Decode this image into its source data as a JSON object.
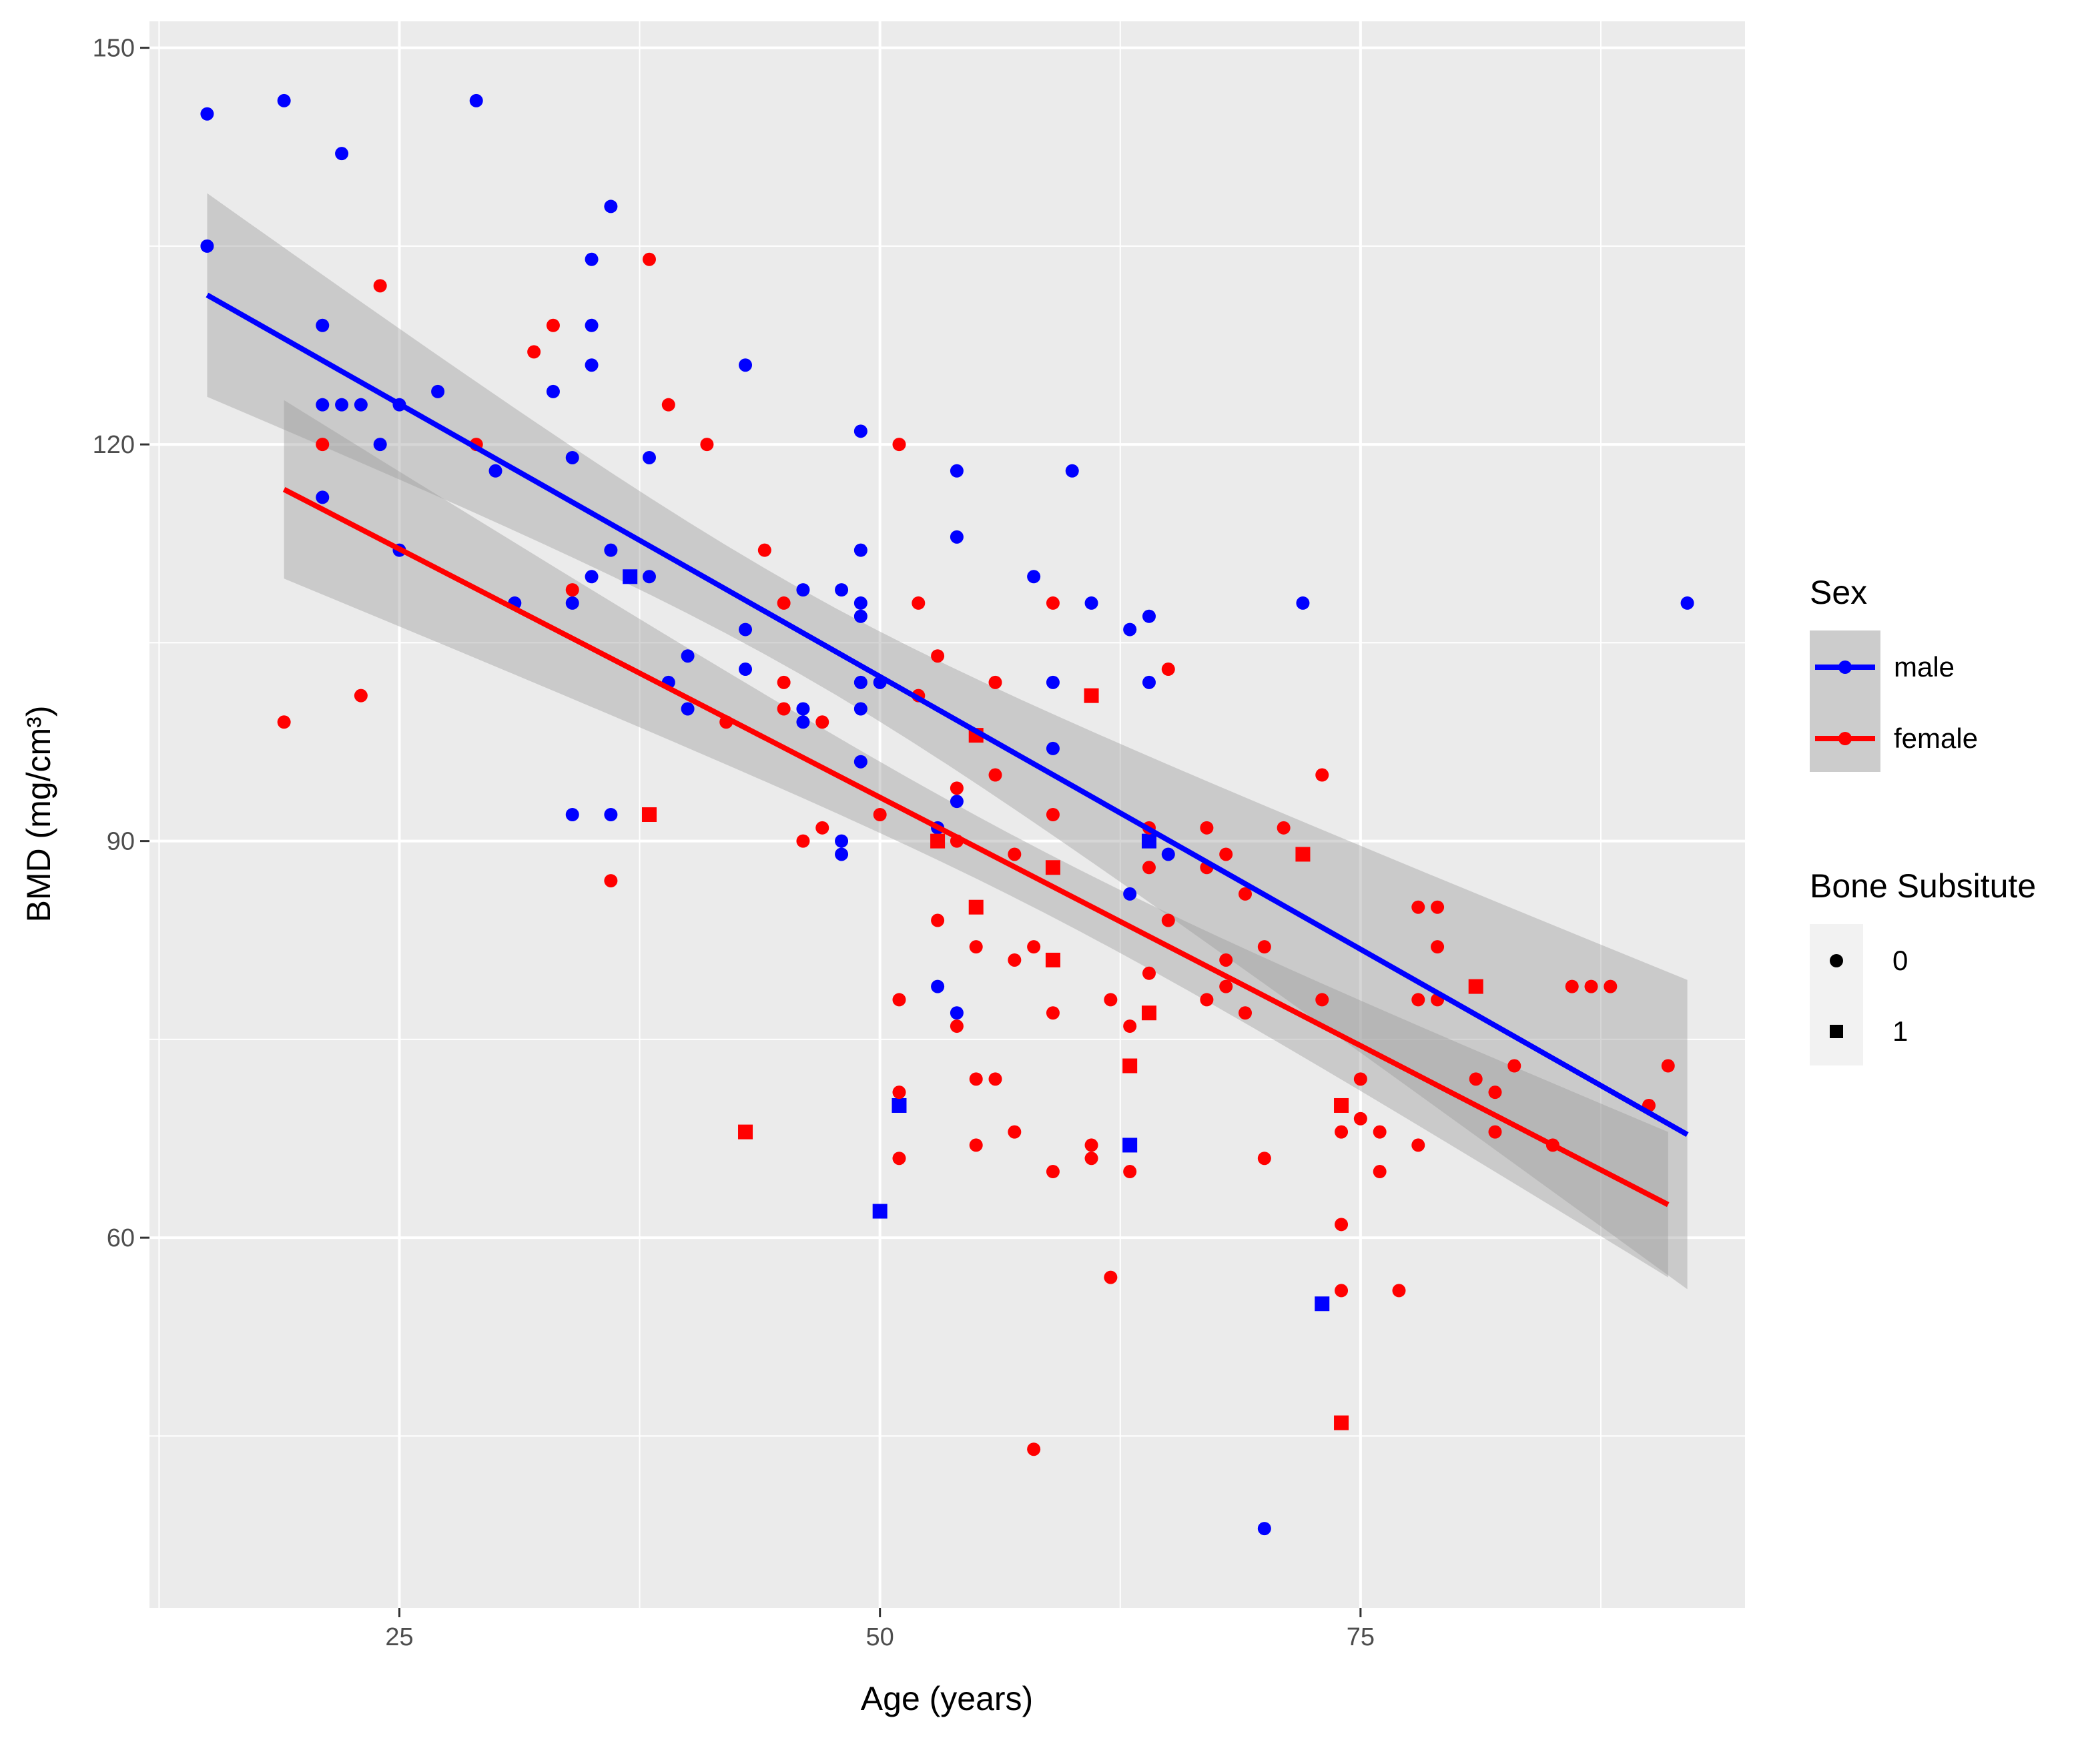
{
  "chart_data": {
    "type": "scatter",
    "title": "",
    "xlabel": "Age (years)",
    "ylabel": "BMD (mg/cm³)",
    "xlim": [
      12,
      95
    ],
    "ylim": [
      32,
      152
    ],
    "xticks": [
      25,
      50,
      75
    ],
    "yticks": [
      60,
      90,
      120,
      150
    ],
    "grid": true,
    "legend_sex": {
      "title": "Sex",
      "entries": [
        {
          "label": "male",
          "color": "#0000ff"
        },
        {
          "label": "female",
          "color": "#ff0000"
        }
      ]
    },
    "legend_shape": {
      "title": "Bone Subsitute",
      "entries": [
        {
          "label": "0",
          "shape": "circle"
        },
        {
          "label": "1",
          "shape": "square"
        }
      ]
    },
    "colors": {
      "male": "#0000ff",
      "female": "#ff0000",
      "band": "#999999",
      "panel": "#ebebeb",
      "grid": "#ffffff"
    },
    "fits": [
      {
        "name": "male",
        "x": [
          15,
          92
        ],
        "y": [
          131.3,
          67.8
        ],
        "ci_lower_start": 123.6,
        "ci_upper_start": 139.0,
        "ci_lower_end": 56.2,
        "ci_upper_end": 79.6
      },
      {
        "name": "female",
        "x": [
          19,
          91
        ],
        "y": [
          116.6,
          62.5
        ],
        "ci_lower_start": 109.8,
        "ci_upper_start": 123.3,
        "ci_lower_end": 57.0,
        "ci_upper_end": 68.0
      }
    ],
    "series": [
      {
        "name": "male",
        "shape": "circle",
        "points": [
          [
            15,
            145
          ],
          [
            15,
            135
          ],
          [
            19,
            146
          ],
          [
            22,
            142
          ],
          [
            21,
            129
          ],
          [
            21,
            123
          ],
          [
            22,
            123
          ],
          [
            23,
            123
          ],
          [
            21,
            116
          ],
          [
            24,
            120
          ],
          [
            25,
            123
          ],
          [
            25,
            112
          ],
          [
            27,
            124
          ],
          [
            29,
            146
          ],
          [
            30,
            118
          ],
          [
            31,
            108
          ],
          [
            33,
            124
          ],
          [
            34,
            119
          ],
          [
            34,
            108
          ],
          [
            34,
            92
          ],
          [
            35,
            134
          ],
          [
            35,
            129
          ],
          [
            35,
            126
          ],
          [
            35,
            110
          ],
          [
            36,
            138
          ],
          [
            36,
            112
          ],
          [
            36,
            92
          ],
          [
            38,
            119
          ],
          [
            38,
            110
          ],
          [
            39,
            102
          ],
          [
            40,
            104
          ],
          [
            40,
            100
          ],
          [
            43,
            126
          ],
          [
            43,
            106
          ],
          [
            43,
            103
          ],
          [
            46,
            109
          ],
          [
            46,
            100
          ],
          [
            46,
            99
          ],
          [
            48,
            109
          ],
          [
            48,
            90
          ],
          [
            48,
            89
          ],
          [
            49,
            121
          ],
          [
            49,
            112
          ],
          [
            49,
            108
          ],
          [
            49,
            107
          ],
          [
            49,
            102
          ],
          [
            49,
            100
          ],
          [
            49,
            96
          ],
          [
            50,
            102
          ],
          [
            53,
            91
          ],
          [
            53,
            79
          ],
          [
            54,
            118
          ],
          [
            54,
            113
          ],
          [
            54,
            93
          ],
          [
            54,
            77
          ],
          [
            58,
            110
          ],
          [
            59,
            102
          ],
          [
            59,
            97
          ],
          [
            60,
            118
          ],
          [
            61,
            108
          ],
          [
            63,
            106
          ],
          [
            63,
            86
          ],
          [
            64,
            107
          ],
          [
            64,
            102
          ],
          [
            65,
            89
          ],
          [
            72,
            108
          ],
          [
            70,
            38
          ],
          [
            92,
            108
          ]
        ]
      },
      {
        "name": "male",
        "shape": "square",
        "points": [
          [
            37,
            110
          ],
          [
            50,
            62
          ],
          [
            51,
            70
          ],
          [
            63,
            67
          ],
          [
            64,
            90
          ],
          [
            73,
            55
          ]
        ]
      },
      {
        "name": "female",
        "shape": "circle",
        "points": [
          [
            19,
            99
          ],
          [
            21,
            120
          ],
          [
            23,
            101
          ],
          [
            24,
            132
          ],
          [
            29,
            120
          ],
          [
            32,
            127
          ],
          [
            33,
            129
          ],
          [
            34,
            109
          ],
          [
            36,
            87
          ],
          [
            38,
            134
          ],
          [
            39,
            123
          ],
          [
            41,
            120
          ],
          [
            42,
            99
          ],
          [
            44,
            112
          ],
          [
            45,
            108
          ],
          [
            45,
            102
          ],
          [
            45,
            100
          ],
          [
            46,
            90
          ],
          [
            47,
            99
          ],
          [
            47,
            91
          ],
          [
            50,
            92
          ],
          [
            51,
            120
          ],
          [
            51,
            78
          ],
          [
            51,
            71
          ],
          [
            51,
            66
          ],
          [
            52,
            108
          ],
          [
            52,
            101
          ],
          [
            53,
            104
          ],
          [
            53,
            84
          ],
          [
            54,
            94
          ],
          [
            54,
            90
          ],
          [
            54,
            76
          ],
          [
            55,
            82
          ],
          [
            55,
            72
          ],
          [
            55,
            67
          ],
          [
            56,
            102
          ],
          [
            56,
            95
          ],
          [
            56,
            72
          ],
          [
            57,
            89
          ],
          [
            57,
            81
          ],
          [
            57,
            68
          ],
          [
            58,
            82
          ],
          [
            58,
            44
          ],
          [
            59,
            108
          ],
          [
            59,
            92
          ],
          [
            59,
            77
          ],
          [
            59,
            65
          ],
          [
            61,
            67
          ],
          [
            61,
            66
          ],
          [
            62,
            78
          ],
          [
            62,
            57
          ],
          [
            63,
            76
          ],
          [
            63,
            65
          ],
          [
            64,
            91
          ],
          [
            64,
            88
          ],
          [
            64,
            80
          ],
          [
            65,
            103
          ],
          [
            65,
            84
          ],
          [
            67,
            91
          ],
          [
            67,
            88
          ],
          [
            67,
            78
          ],
          [
            68,
            89
          ],
          [
            68,
            81
          ],
          [
            68,
            79
          ],
          [
            69,
            86
          ],
          [
            69,
            77
          ],
          [
            70,
            82
          ],
          [
            70,
            66
          ],
          [
            71,
            91
          ],
          [
            73,
            95
          ],
          [
            73,
            78
          ],
          [
            74,
            68
          ],
          [
            74,
            61
          ],
          [
            74,
            56
          ],
          [
            75,
            72
          ],
          [
            75,
            69
          ],
          [
            76,
            68
          ],
          [
            76,
            65
          ],
          [
            77,
            56
          ],
          [
            78,
            85
          ],
          [
            78,
            78
          ],
          [
            78,
            67
          ],
          [
            79,
            85
          ],
          [
            79,
            82
          ],
          [
            79,
            78
          ],
          [
            81,
            72
          ],
          [
            82,
            71
          ],
          [
            82,
            68
          ],
          [
            83,
            73
          ],
          [
            85,
            67
          ],
          [
            86,
            79
          ],
          [
            87,
            79
          ],
          [
            88,
            79
          ],
          [
            90,
            70
          ],
          [
            91,
            73
          ]
        ]
      },
      {
        "name": "female",
        "shape": "square",
        "points": [
          [
            38,
            92
          ],
          [
            43,
            68
          ],
          [
            53,
            90
          ],
          [
            55,
            85
          ],
          [
            55,
            98
          ],
          [
            59,
            81
          ],
          [
            59,
            88
          ],
          [
            61,
            101
          ],
          [
            63,
            73
          ],
          [
            64,
            77
          ],
          [
            72,
            89
          ],
          [
            74,
            70
          ],
          [
            74,
            46
          ],
          [
            81,
            79
          ]
        ]
      }
    ]
  }
}
